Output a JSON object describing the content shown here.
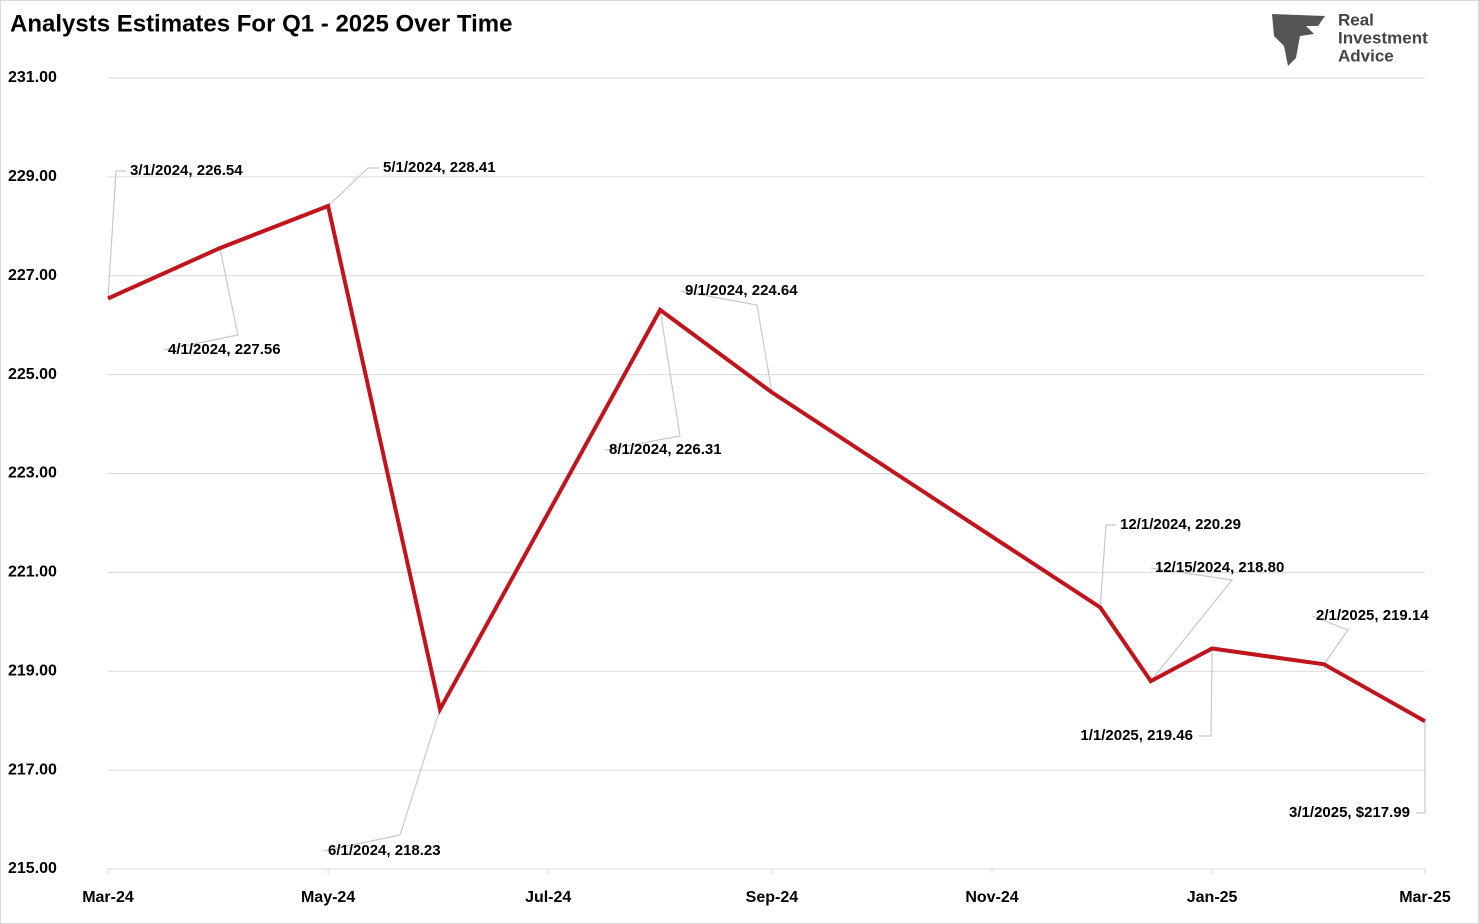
{
  "chart_data": {
    "type": "line",
    "title": "Analysts Estimates For Q1 - 2025 Over Time",
    "x": [
      "3/1/2024",
      "4/1/2024",
      "5/1/2024",
      "6/1/2024",
      "8/1/2024",
      "9/1/2024",
      "12/1/2024",
      "12/15/2024",
      "1/1/2025",
      "2/1/2025",
      "3/1/2025"
    ],
    "series": [
      {
        "color": "#c0151d",
        "values": [
          226.54,
          227.56,
          228.41,
          218.23,
          226.31,
          224.64,
          220.29,
          218.8,
          219.46,
          219.14,
          217.99
        ],
        "value_labels": [
          "3/1/2024, 226.54",
          "4/1/2024, 227.56",
          "5/1/2024, 228.41",
          "6/1/2024, 218.23",
          "8/1/2024, 226.31",
          "9/1/2024, 224.64",
          "12/1/2024, 220.29",
          "12/15/2024, 218.80",
          "1/1/2025, 219.46",
          "2/1/2025, 219.14",
          "3/1/2025, $217.99"
        ]
      }
    ],
    "xlim": [
      "3/1/2024",
      "3/1/2025"
    ],
    "xticks": [
      {
        "value": "3/1/2024",
        "label": "Mar-24"
      },
      {
        "value": "5/1/2024",
        "label": "May-24"
      },
      {
        "value": "7/1/2024",
        "label": "Jul-24"
      },
      {
        "value": "9/1/2024",
        "label": "Sep-24"
      },
      {
        "value": "11/1/2024",
        "label": "Nov-24"
      },
      {
        "value": "1/1/2025",
        "label": "Jan-25"
      },
      {
        "value": "3/1/2025",
        "label": "Mar-25"
      }
    ],
    "ylim": [
      215,
      231
    ],
    "yticks": [
      {
        "value": 215,
        "label": "215.00"
      },
      {
        "value": 217,
        "label": "217.00"
      },
      {
        "value": 219,
        "label": "219.00"
      },
      {
        "value": 221,
        "label": "221.00"
      },
      {
        "value": 223,
        "label": "223.00"
      },
      {
        "value": 225,
        "label": "225.00"
      },
      {
        "value": 227,
        "label": "227.00"
      },
      {
        "value": 229,
        "label": "229.00"
      },
      {
        "value": 231,
        "label": "231.00"
      }
    ],
    "grid": true
  },
  "logo": [
    "Real",
    "Investment",
    "Advice"
  ]
}
